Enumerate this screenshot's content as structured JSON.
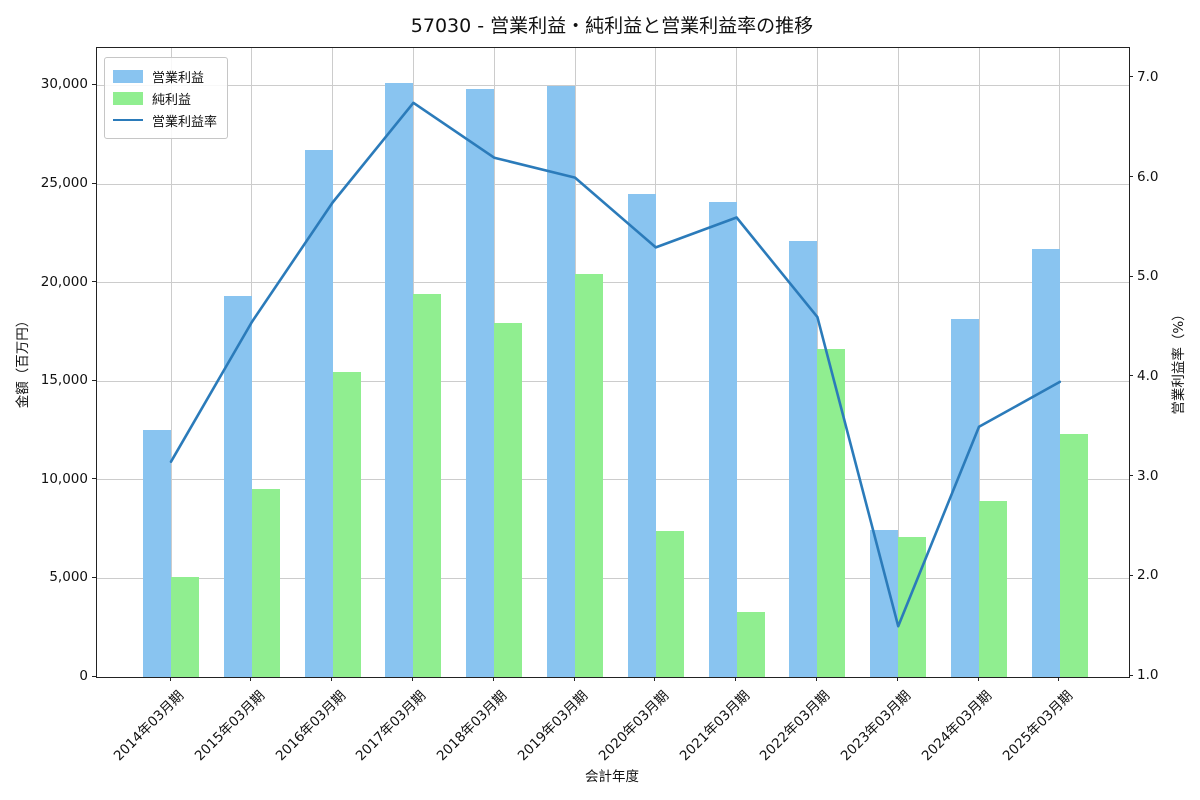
{
  "title": "57030 - 営業利益・純利益と営業利益率の推移",
  "axes": {
    "xlabel": "会計年度",
    "ylabel_left": "金額（百万円）",
    "ylabel_right": "営業利益率（%）"
  },
  "chart_data": {
    "type": "bar+line",
    "title": "57030 - 営業利益・純利益と営業利益率の推移",
    "xlabel": "会計年度",
    "ylabel_left": "金額（百万円）",
    "ylabel_right": "営業利益率（%）",
    "grid": true,
    "legend_position": "upper-left",
    "categories": [
      "2014年03月期",
      "2015年03月期",
      "2016年03月期",
      "2017年03月期",
      "2018年03月期",
      "2019年03月期",
      "2020年03月期",
      "2021年03月期",
      "2022年03月期",
      "2023年03月期",
      "2024年03月期",
      "2025年03月期"
    ],
    "series": [
      {
        "id": "operating-profit",
        "name": "営業利益",
        "type": "bar",
        "axis": "left",
        "color": "#89C4F0",
        "values": [
          12550,
          19300,
          26750,
          30150,
          29800,
          29950,
          24500,
          24100,
          22100,
          7450,
          18150,
          21700
        ]
      },
      {
        "id": "net-profit",
        "name": "純利益",
        "type": "bar",
        "axis": "left",
        "color": "#90EE90",
        "values": [
          5050,
          9550,
          15450,
          19450,
          17950,
          20450,
          7400,
          3300,
          16650,
          7100,
          8950,
          12300
        ]
      },
      {
        "id": "operating-margin",
        "name": "営業利益率",
        "type": "line",
        "axis": "right",
        "color": "#2B7BBA",
        "values": [
          3.15,
          4.55,
          5.75,
          6.75,
          6.2,
          6.0,
          5.3,
          5.6,
          4.6,
          1.5,
          3.5,
          3.95
        ]
      }
    ],
    "y_left": {
      "min": 0,
      "max": 31900,
      "ticks": [
        0,
        5000,
        10000,
        15000,
        20000,
        25000,
        30000
      ],
      "tick_labels": [
        "0",
        "5,000",
        "10,000",
        "15,000",
        "20,000",
        "25,000",
        "30,000"
      ]
    },
    "y_right": {
      "min": 0.99,
      "max": 7.3,
      "ticks": [
        1.0,
        2.0,
        3.0,
        4.0,
        5.0,
        6.0,
        7.0
      ],
      "tick_labels": [
        "1.0",
        "2.0",
        "3.0",
        "4.0",
        "5.0",
        "6.0",
        "7.0"
      ]
    }
  }
}
